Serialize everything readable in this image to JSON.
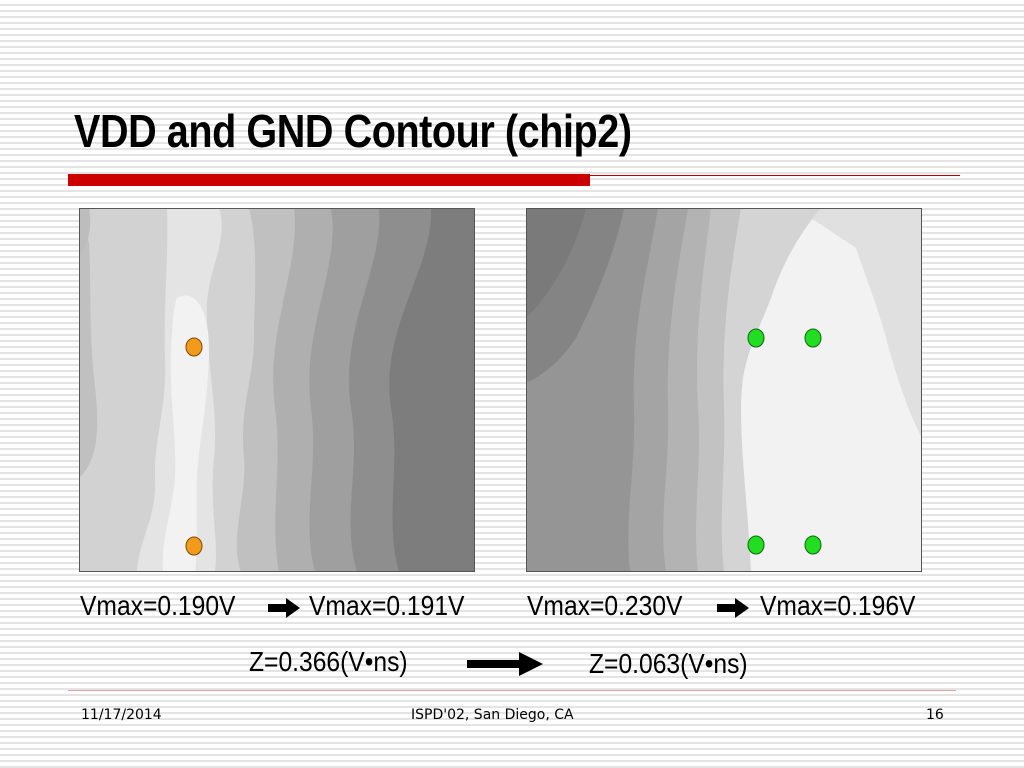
{
  "slide": {
    "title": "VDD and GND Contour (chip2)"
  },
  "panels": [
    {
      "name": "vdd",
      "label_before": "Vmax=0.190V",
      "label_after": "Vmax=0.191V",
      "marker_color": "#f29a1c"
    },
    {
      "name": "gnd",
      "label_before": "Vmax=0.230V",
      "label_after": "Vmax=0.196V",
      "marker_color": "#22dd22"
    }
  ],
  "z_metric": {
    "before": "Z=0.366(V•ns)",
    "after": "Z=0.063(V•ns)"
  },
  "footer": {
    "date": "11/17/2014",
    "venue": "ISPD'02, San Diego, CA",
    "page": "16"
  },
  "colors": {
    "accent": "#cc0000",
    "contour_darkest": "#7c7c7c",
    "contour_lightest": "#f2f2f2"
  }
}
